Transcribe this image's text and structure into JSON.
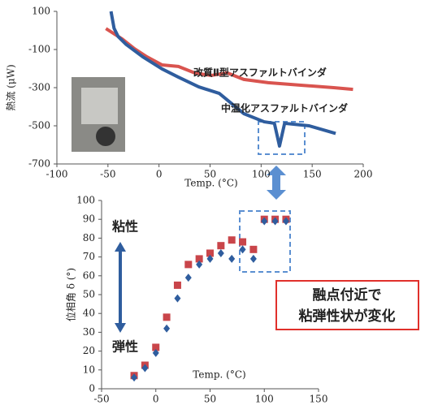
{
  "chart_data": [
    {
      "type": "line",
      "ylabel": "熱流 (μW)",
      "xlabel": "Temp. (°C)",
      "xlim": [
        -100,
        200
      ],
      "xticks": [
        -100,
        -50,
        0,
        50,
        100,
        150,
        200
      ],
      "ylim": [
        -700,
        100
      ],
      "yticks": [
        100,
        -100,
        -300,
        -500,
        -700
      ],
      "series": [
        {
          "name": "改質Ⅱ型アスファルトバインダ",
          "color": "#d9544f",
          "x": [
            -52,
            -36,
            -24,
            -12,
            3,
            19,
            35,
            51,
            67,
            83,
            107,
            139,
            171,
            190
          ],
          "values": [
            10,
            -45,
            -96,
            -138,
            -181,
            -189,
            -223,
            -236,
            -223,
            -257,
            -274,
            -287,
            -300,
            -309
          ]
        },
        {
          "name": "中温化アスファルトバインダ",
          "color": "#2f5d9e",
          "x": [
            -47,
            -44,
            -40,
            -32,
            -16,
            3,
            19,
            39,
            59,
            83,
            103,
            113,
            118,
            123,
            147,
            173
          ],
          "values": [
            100,
            11,
            -32,
            -74,
            -138,
            -202,
            -245,
            -296,
            -330,
            -436,
            -479,
            -487,
            -606,
            -487,
            -500,
            -540
          ]
        }
      ]
    },
    {
      "type": "scatter",
      "ylabel": "位相角 δ (°)",
      "xlabel": "Temp. (°C)",
      "xlim": [
        -50,
        150
      ],
      "xticks": [
        -50,
        0,
        50,
        100,
        150
      ],
      "ylim": [
        0,
        100
      ],
      "yticks": [
        0,
        10,
        20,
        30,
        40,
        50,
        60,
        70,
        80,
        90,
        100
      ],
      "annotations": [
        "粘性",
        "弾性",
        "融点付近で",
        "粘弾性状が変化"
      ],
      "x": [
        -20,
        -10,
        0,
        10,
        20,
        30,
        40,
        50,
        60,
        70,
        80,
        90,
        100,
        110,
        120
      ],
      "series": [
        {
          "color": "#c9454a",
          "values": [
            7,
            12.5,
            22,
            38,
            55,
            66,
            69,
            72,
            76,
            79,
            78,
            74,
            90,
            90,
            90
          ]
        },
        {
          "color": "#2f5d9e",
          "values": [
            6,
            11,
            19,
            32,
            48,
            59,
            66,
            69,
            72,
            69,
            74,
            69,
            89,
            89,
            89
          ]
        }
      ]
    }
  ]
}
